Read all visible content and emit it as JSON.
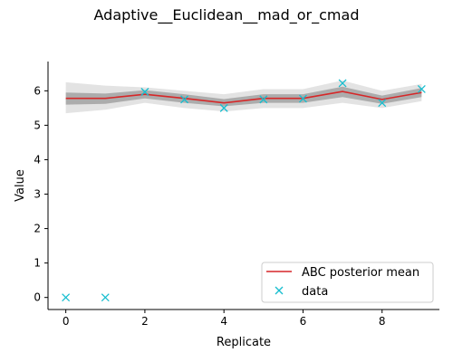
{
  "chart_data": {
    "type": "line",
    "title": "Adaptive__Euclidean__mad_or_cmad",
    "xlabel": "Replicate",
    "ylabel": "Value",
    "xlim": [
      -0.45,
      9.45
    ],
    "ylim": [
      -0.35,
      6.85
    ],
    "x_ticks": [
      0,
      2,
      4,
      6,
      8
    ],
    "x_tick_labels": [
      "0",
      "2",
      "4",
      "6",
      "8"
    ],
    "y_ticks": [
      0,
      1,
      2,
      3,
      4,
      5,
      6
    ],
    "y_tick_labels": [
      "0",
      "1",
      "2",
      "3",
      "4",
      "5",
      "6"
    ],
    "grid": false,
    "legend_position": "lower-right",
    "x": [
      0,
      1,
      2,
      3,
      4,
      5,
      6,
      7,
      8,
      9
    ],
    "series": [
      {
        "name": "ABC posterior mean",
        "kind": "line",
        "color": "#d62728",
        "values": [
          5.78,
          5.78,
          5.9,
          5.78,
          5.65,
          5.78,
          5.78,
          5.98,
          5.75,
          5.95
        ]
      },
      {
        "name": "data",
        "kind": "marker-x",
        "color": "#17becf",
        "values": [
          0.0,
          0.0,
          5.97,
          5.75,
          5.5,
          5.75,
          5.77,
          6.22,
          5.65,
          6.05
        ]
      }
    ],
    "posterior_band": {
      "color": "#808080",
      "lower": [
        5.35,
        5.45,
        5.65,
        5.5,
        5.4,
        5.5,
        5.5,
        5.65,
        5.5,
        5.7
      ],
      "upper": [
        6.25,
        6.15,
        6.1,
        6.0,
        5.9,
        6.05,
        6.05,
        6.3,
        6.0,
        6.2
      ],
      "inner_lower": [
        5.6,
        5.62,
        5.78,
        5.65,
        5.55,
        5.65,
        5.65,
        5.82,
        5.62,
        5.82
      ],
      "inner_upper": [
        5.95,
        5.92,
        6.02,
        5.9,
        5.76,
        5.9,
        5.9,
        6.12,
        5.86,
        6.08
      ]
    }
  }
}
